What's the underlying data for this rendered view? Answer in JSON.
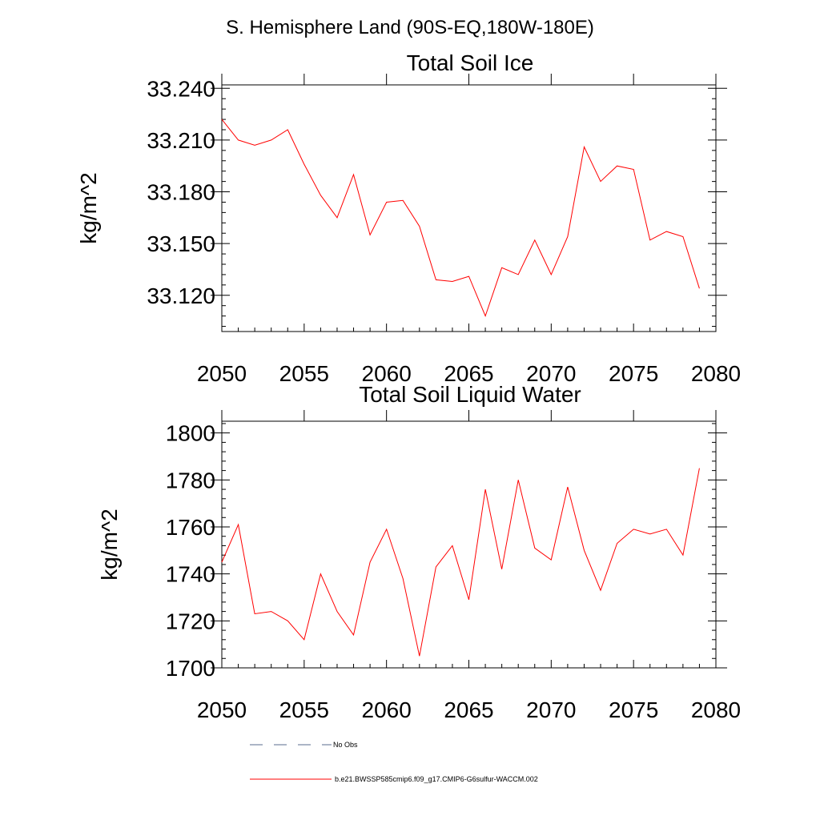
{
  "header": {
    "title": "S. Hemisphere Land (90S-EQ,180W-180E)"
  },
  "chart_data": [
    {
      "type": "line",
      "title": "Total Soil Ice",
      "xlabel": "",
      "ylabel": "kg/m^2",
      "xlim": [
        2050,
        2080
      ],
      "ylim": [
        33.099,
        33.242
      ],
      "xticks": [
        2050,
        2055,
        2060,
        2065,
        2070,
        2075,
        2080
      ],
      "yticks": [
        33.12,
        33.15,
        33.18,
        33.21,
        33.24
      ],
      "ytick_labels": [
        "33.120",
        "33.150",
        "33.180",
        "33.210",
        "33.240"
      ],
      "grid": false,
      "series": [
        {
          "name": "b.e21.BWSSP585cmip6.f09_g17.CMIP6-G6sulfur-WACCM.002",
          "color": "#ff0000",
          "x": [
            2050,
            2051,
            2052,
            2053,
            2054,
            2055,
            2056,
            2057,
            2058,
            2059,
            2060,
            2061,
            2062,
            2063,
            2064,
            2065,
            2066,
            2067,
            2068,
            2069,
            2070,
            2071,
            2072,
            2073,
            2074,
            2075,
            2076,
            2077,
            2078,
            2079
          ],
          "values": [
            33.222,
            33.21,
            33.207,
            33.21,
            33.216,
            33.196,
            33.178,
            33.165,
            33.19,
            33.155,
            33.174,
            33.175,
            33.16,
            33.129,
            33.128,
            33.131,
            33.108,
            33.136,
            33.132,
            33.152,
            33.132,
            33.154,
            33.206,
            33.186,
            33.195,
            33.193,
            33.152,
            33.157,
            33.154,
            33.124
          ]
        }
      ]
    },
    {
      "type": "line",
      "title": "Total Soil Liquid Water",
      "xlabel": "",
      "ylabel": "kg/m^2",
      "xlim": [
        2050,
        2080
      ],
      "ylim": [
        1700,
        1805
      ],
      "xticks": [
        2050,
        2055,
        2060,
        2065,
        2070,
        2075,
        2080
      ],
      "yticks": [
        1700,
        1720,
        1740,
        1760,
        1780,
        1800
      ],
      "ytick_labels": [
        "1700",
        "1720",
        "1740",
        "1760",
        "1780",
        "1800"
      ],
      "grid": false,
      "series": [
        {
          "name": "b.e21.BWSSP585cmip6.f09_g17.CMIP6-G6sulfur-WACCM.002",
          "color": "#ff0000",
          "x": [
            2050,
            2051,
            2052,
            2053,
            2054,
            2055,
            2056,
            2057,
            2058,
            2059,
            2060,
            2061,
            2062,
            2063,
            2064,
            2065,
            2066,
            2067,
            2068,
            2069,
            2070,
            2071,
            2072,
            2073,
            2074,
            2075,
            2076,
            2077,
            2078,
            2079
          ],
          "values": [
            1745,
            1761,
            1723,
            1724,
            1720,
            1712,
            1740,
            1724,
            1714,
            1745,
            1759,
            1738,
            1705,
            1743,
            1752,
            1729,
            1776,
            1742,
            1780,
            1751,
            1746,
            1777,
            1750,
            1733,
            1753,
            1759,
            1757,
            1759,
            1748,
            1785
          ]
        }
      ]
    }
  ],
  "legend": [
    {
      "label": "No Obs",
      "color": "#5a6b8c",
      "style": "dashed"
    },
    {
      "label": "b.e21.BWSSP585cmip6.f09_g17.CMIP6-G6sulfur-WACCM.002",
      "color": "#ff0000",
      "style": "solid"
    }
  ]
}
